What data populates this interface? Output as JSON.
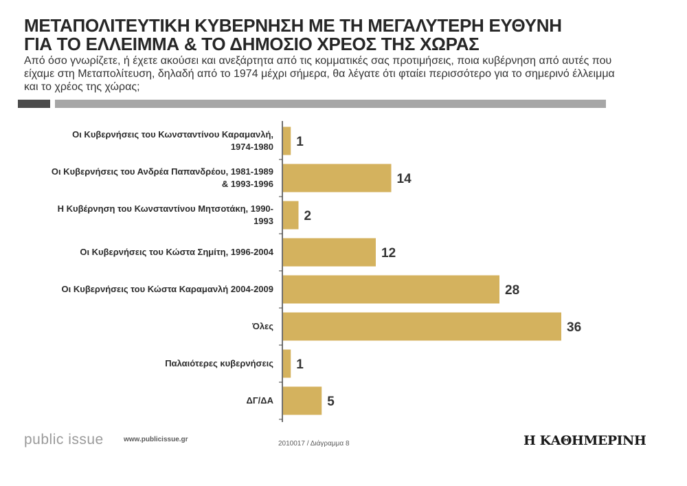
{
  "header": {
    "title_line1": "ΜΕΤΑΠΟΛΙΤΕΥΤΙΚΗ ΚΥΒΕΡΝΗΣΗ ΜΕ ΤΗ ΜΕΓΑΛΥΤΕΡΗ ΕΥΘΥΝΗ",
    "title_line2": "ΓΙΑ ΤΟ ΕΛΛΕΙΜΜΑ & ΤΟ ΔΗΜΟΣΙΟ ΧΡΕΟΣ ΤΗΣ ΧΩΡΑΣ",
    "question": "Από όσο γνωρίζετε, ή έχετε ακούσει και ανεξάρτητα από τις κομματικές σας προτιμήσεις, ποια κυβέρνηση από αυτές που είχαμε στη Μεταπολίτευση, δηλαδή από το 1974 μέχρι σήμερα, θα λέγατε ότι φταίει περισσότερο για το σημερινό έλλειμμα και το χρέος της χώρας;"
  },
  "chart_data": {
    "type": "bar",
    "orientation": "horizontal",
    "categories": [
      [
        "Οι Κυβερνήσεις του Κωνσταντίνου Καραμανλή,",
        "1974-1980"
      ],
      [
        "Οι Κυβερνήσεις του Ανδρέα Παπανδρέου, 1981-1989",
        "& 1993-1996"
      ],
      [
        "Η Κυβέρνηση του Κωνσταντίνου Μητσοτάκη, 1990-",
        "1993"
      ],
      [
        "Οι Κυβερνήσεις του Κώστα Σημίτη, 1996-2004"
      ],
      [
        "Οι Κυβερνήσεις του Κώστα Καραμανλή 2004-2009"
      ],
      [
        "Όλες"
      ],
      [
        "Παλαιότερες κυβερνήσεις"
      ],
      [
        "ΔΓ/ΔΑ"
      ]
    ],
    "values": [
      1,
      14,
      2,
      12,
      28,
      36,
      1,
      5
    ],
    "xlim": [
      0,
      36
    ],
    "grid": false,
    "bar_color": "#d4b25e"
  },
  "footer": {
    "brand": "public issue",
    "url": "www.publicissue.gr",
    "code": "2010017 / Διάγραμμα 8",
    "newspaper": "Η ΚΑΘΗΜΕΡΙΝΗ"
  }
}
